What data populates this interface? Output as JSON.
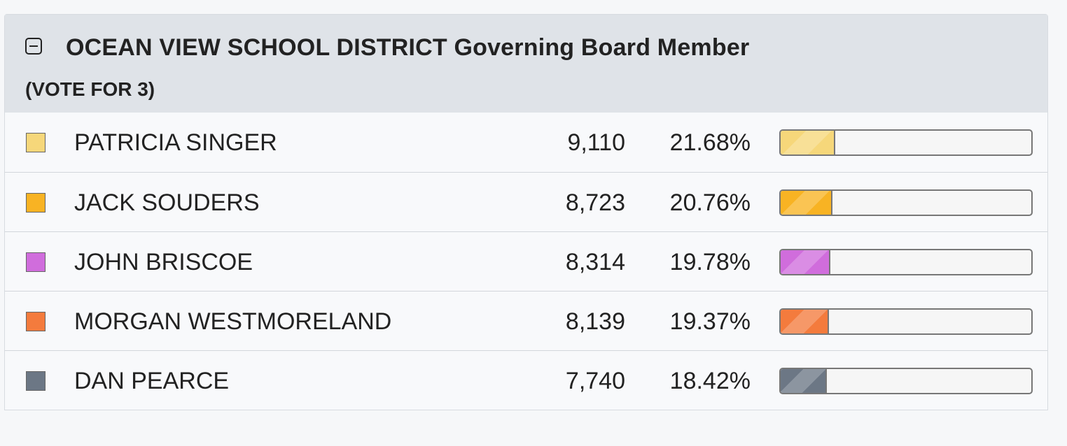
{
  "contest": {
    "title": "OCEAN VIEW SCHOOL DISTRICT Governing Board Member",
    "subtitle": "(VOTE FOR 3)"
  },
  "candidates": [
    {
      "name": "PATRICIA SINGER",
      "votes": "9,110",
      "percent": "21.68%",
      "share": 21.68,
      "color": "#f6d77a"
    },
    {
      "name": "JACK SOUDERS",
      "votes": "8,723",
      "percent": "20.76%",
      "share": 20.76,
      "color": "#f8b323"
    },
    {
      "name": "JOHN BRISCOE",
      "votes": "8,314",
      "percent": "19.78%",
      "share": 19.78,
      "color": "#d06ddc"
    },
    {
      "name": "MORGAN WESTMORELAND",
      "votes": "8,139",
      "percent": "19.37%",
      "share": 19.37,
      "color": "#f47b3d"
    },
    {
      "name": "DAN PEARCE",
      "votes": "7,740",
      "percent": "18.42%",
      "share": 18.42,
      "color": "#6c7785"
    }
  ]
}
